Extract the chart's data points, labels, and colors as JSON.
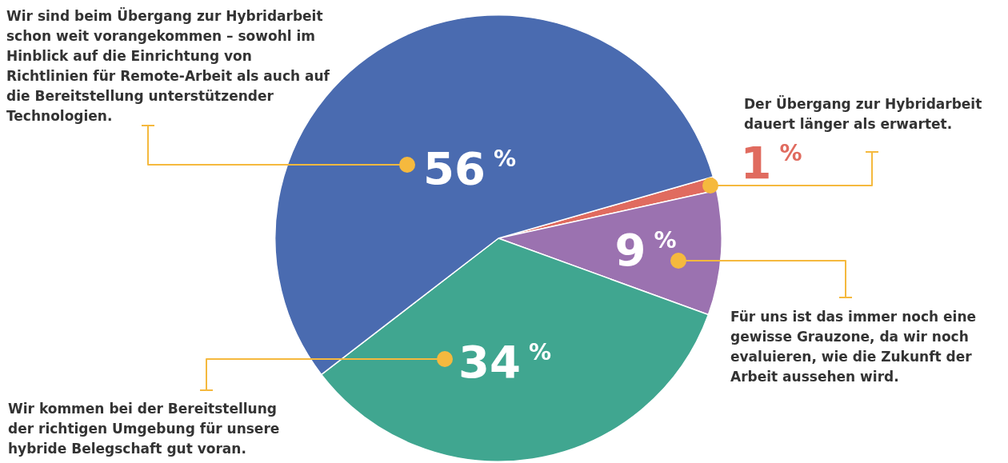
{
  "chart_data": {
    "type": "pie",
    "categories": [
      "Der Übergang zur Hybridarbeit dauert länger als erwartet.",
      "Für uns ist das immer noch eine gewisse Grauzone, da wir noch evaluieren, wie die Zukunft der Arbeit aussehen wird.",
      "Wir kommen bei der Bereitstellung der richtigen Umgebung für unsere hybride Belegschaft gut voran.",
      "Wir sind beim Übergang zur Hybridarbeit schon weit vorangekommen – sowohl im Hinblick auf die Einrichtung von Richtlinien für Remote-Arbeit als auch auf die Bereitstellung unterstützender Technologien."
    ],
    "values": [
      1,
      9,
      34,
      56
    ],
    "colors": [
      "#e06b5f",
      "#9b72b0",
      "#40a690",
      "#4a6bb0"
    ],
    "value_labels": [
      "1 %",
      "9 %",
      "34 %",
      "56 %"
    ],
    "legend": false
  }
}
